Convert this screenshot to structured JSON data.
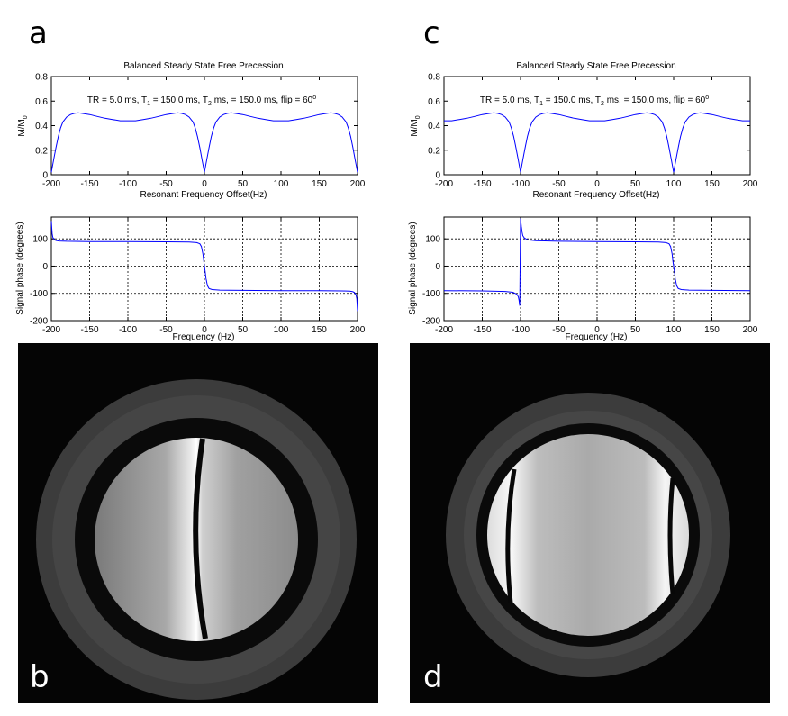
{
  "panels": {
    "a": "a",
    "b": "b",
    "c": "c",
    "d": "d"
  },
  "chart_data": [
    {
      "id": "a-magnitude",
      "type": "line",
      "title": "Balanced Steady State Free Precession",
      "annotation": {
        "pre": "TR = 5.0 ms, T",
        "s1": "1",
        "mid1": " = 150.0 ms, T",
        "s2": "2",
        "mid2": " ms, = 150.0 ms, flip = 60",
        "sup": "o"
      },
      "xlabel": "Resonant Frequency Offset(Hz)",
      "ylabel": {
        "base": "M/M",
        "sub": "0"
      },
      "xlim": [
        -200,
        200
      ],
      "ylim": [
        0,
        0.8
      ],
      "xticks": [
        "-200",
        "-150",
        "-100",
        "-50",
        "0",
        "50",
        "100",
        "150",
        "200"
      ],
      "yticks": [
        "0",
        "0.2",
        "0.4",
        "0.6",
        "0.8"
      ],
      "grid": false,
      "color": "#0000ff",
      "series": [
        {
          "x": [
            -200,
            -197,
            -194,
            -191,
            -188,
            -185,
            -180,
            -175,
            -170,
            -165,
            -160,
            -150,
            -140,
            -130,
            -120,
            -110,
            -100,
            -90,
            -80,
            -70,
            -60,
            -50,
            -40,
            -35,
            -30,
            -25,
            -20,
            -15,
            -12,
            -9,
            -6,
            -3,
            0,
            3,
            6,
            9,
            12,
            15,
            20,
            25,
            30,
            35,
            40,
            50,
            60,
            70,
            80,
            90,
            100,
            110,
            120,
            130,
            140,
            150,
            160,
            165,
            170,
            175,
            180,
            185,
            188,
            191,
            194,
            197,
            200
          ],
          "y": [
            0.02,
            0.12,
            0.22,
            0.31,
            0.38,
            0.43,
            0.47,
            0.49,
            0.5,
            0.505,
            0.5,
            0.49,
            0.475,
            0.46,
            0.45,
            0.44,
            0.44,
            0.44,
            0.45,
            0.46,
            0.475,
            0.49,
            0.5,
            0.505,
            0.5,
            0.49,
            0.47,
            0.43,
            0.38,
            0.31,
            0.22,
            0.12,
            0.02,
            0.12,
            0.22,
            0.31,
            0.38,
            0.43,
            0.47,
            0.49,
            0.5,
            0.505,
            0.5,
            0.49,
            0.475,
            0.46,
            0.45,
            0.44,
            0.44,
            0.44,
            0.45,
            0.46,
            0.475,
            0.49,
            0.5,
            0.505,
            0.5,
            0.49,
            0.47,
            0.43,
            0.38,
            0.31,
            0.22,
            0.12,
            0.02
          ]
        }
      ]
    },
    {
      "id": "a-phase",
      "type": "line",
      "xlabel": "Frequency (Hz)",
      "ylabel": "Signal phase (degrees)",
      "xlim": [
        -200,
        200
      ],
      "ylim": [
        -200,
        180
      ],
      "xticks": [
        "-200",
        "-150",
        "-100",
        "-50",
        "0",
        "50",
        "100",
        "150",
        "200"
      ],
      "yticks": [
        "-200",
        "-100",
        "0",
        "100"
      ],
      "grid": true,
      "color": "#0000ff",
      "series": [
        {
          "x": [
            -200,
            -199,
            -198,
            -196,
            -194,
            -190,
            -180,
            -150,
            -100,
            -50,
            -20,
            -10,
            -6,
            -4,
            -2,
            -1,
            0,
            1,
            2,
            4,
            6,
            10,
            20,
            50,
            100,
            150,
            180,
            190,
            194,
            196,
            198,
            199,
            200
          ],
          "y": [
            165,
            120,
            105,
            97,
            94,
            92,
            91,
            90,
            90,
            89,
            88,
            86,
            82,
            72,
            45,
            20,
            0,
            -20,
            -45,
            -72,
            -82,
            -86,
            -88,
            -89,
            -90,
            -90,
            -91,
            -92,
            -94,
            -97,
            -105,
            -120,
            -165
          ]
        }
      ]
    },
    {
      "id": "c-magnitude",
      "type": "line",
      "title": "Balanced Steady State Free Precession",
      "annotation": {
        "pre": "TR = 5.0 ms, T",
        "s1": "1",
        "mid1": " = 150.0 ms, T",
        "s2": "2",
        "mid2": " ms, = 150.0 ms, flip = 60",
        "sup": "o"
      },
      "xlabel": "Resonant Frequency Offset(Hz)",
      "ylabel": {
        "base": "M/M",
        "sub": "0"
      },
      "xlim": [
        -200,
        200
      ],
      "ylim": [
        0,
        0.8
      ],
      "xticks": [
        "-200",
        "-150",
        "-100",
        "-50",
        "0",
        "50",
        "100",
        "150",
        "200"
      ],
      "yticks": [
        "0",
        "0.2",
        "0.4",
        "0.6",
        "0.8"
      ],
      "grid": false,
      "color": "#0000ff",
      "series": [
        {
          "x": [
            -200,
            -190,
            -180,
            -170,
            -160,
            -150,
            -140,
            -135,
            -130,
            -125,
            -120,
            -115,
            -112,
            -109,
            -106,
            -103,
            -100,
            -97,
            -94,
            -91,
            -88,
            -85,
            -80,
            -75,
            -70,
            -65,
            -60,
            -50,
            -40,
            -30,
            -20,
            -10,
            0,
            10,
            20,
            30,
            40,
            50,
            60,
            65,
            70,
            75,
            80,
            85,
            88,
            91,
            94,
            97,
            100,
            103,
            106,
            109,
            112,
            115,
            120,
            125,
            130,
            135,
            140,
            150,
            160,
            170,
            180,
            190,
            200
          ],
          "y": [
            0.44,
            0.44,
            0.45,
            0.46,
            0.475,
            0.49,
            0.5,
            0.505,
            0.5,
            0.49,
            0.47,
            0.43,
            0.38,
            0.31,
            0.22,
            0.12,
            0.02,
            0.12,
            0.22,
            0.31,
            0.38,
            0.43,
            0.47,
            0.49,
            0.5,
            0.505,
            0.5,
            0.49,
            0.475,
            0.46,
            0.45,
            0.44,
            0.44,
            0.44,
            0.45,
            0.46,
            0.475,
            0.49,
            0.5,
            0.505,
            0.5,
            0.49,
            0.47,
            0.43,
            0.38,
            0.31,
            0.22,
            0.12,
            0.02,
            0.12,
            0.22,
            0.31,
            0.38,
            0.43,
            0.47,
            0.49,
            0.5,
            0.505,
            0.5,
            0.49,
            0.475,
            0.46,
            0.45,
            0.44,
            0.44
          ]
        }
      ]
    },
    {
      "id": "c-phase",
      "type": "line",
      "xlabel": "Frequency (Hz)",
      "ylabel": "Signal phase (degrees)",
      "xlim": [
        -200,
        200
      ],
      "ylim": [
        -200,
        180
      ],
      "xticks": [
        "-200",
        "-150",
        "-100",
        "-50",
        "0",
        "50",
        "100",
        "150",
        "200"
      ],
      "yticks": [
        "-200",
        "-100",
        "0",
        "100"
      ],
      "grid": true,
      "color": "#0000ff",
      "series": [
        {
          "x": [
            -200,
            -150,
            -120,
            -110,
            -105,
            -103,
            -102,
            -101,
            -100,
            -99,
            -98,
            -97,
            -95,
            -90,
            -80,
            -50,
            0,
            50,
            80,
            90,
            94,
            96,
            98,
            99,
            100,
            101,
            102,
            104,
            106,
            110,
            120,
            150,
            200
          ],
          "y": [
            -90,
            -91,
            -93,
            -96,
            -103,
            -112,
            -125,
            -145,
            175,
            145,
            125,
            112,
            103,
            96,
            93,
            91,
            90,
            89,
            88,
            86,
            82,
            72,
            45,
            20,
            0,
            -20,
            -45,
            -72,
            -82,
            -86,
            -88,
            -89,
            -90
          ]
        }
      ]
    }
  ]
}
